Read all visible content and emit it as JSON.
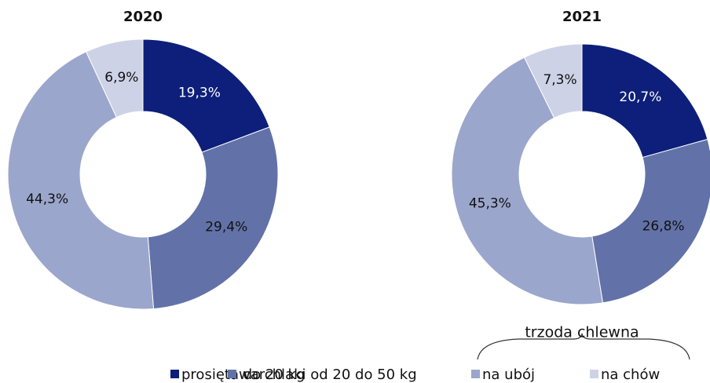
{
  "chart_data": [
    {
      "type": "donut",
      "title": "2020",
      "categories": [
        "prosięta do 20 kg",
        "warchlaki od 20 do 50 kg",
        "na ubój",
        "na chów"
      ],
      "values": [
        19.3,
        29.4,
        44.3,
        6.9
      ],
      "value_labels": [
        "19,3%",
        "29,4%",
        "44,3%",
        "6,9%"
      ],
      "colors": [
        "#0d1f7a",
        "#6272a8",
        "#9ba6cc",
        "#cdd2e6"
      ],
      "label_colors": [
        "#ffffff",
        "#111111",
        "#111111",
        "#111111"
      ]
    },
    {
      "type": "donut",
      "title": "2021",
      "categories": [
        "prosięta do 20 kg",
        "warchlaki od 20 do 50 kg",
        "na ubój",
        "na chów"
      ],
      "values": [
        20.7,
        26.8,
        45.3,
        7.3
      ],
      "value_labels": [
        "20,7%",
        "26,8%",
        "45,3%",
        "7,3%"
      ],
      "colors": [
        "#0d1f7a",
        "#6272a8",
        "#9ba6cc",
        "#cdd2e6"
      ],
      "label_colors": [
        "#ffffff",
        "#111111",
        "#111111",
        "#111111"
      ]
    }
  ],
  "annotation": "trzoda chlewna"
}
